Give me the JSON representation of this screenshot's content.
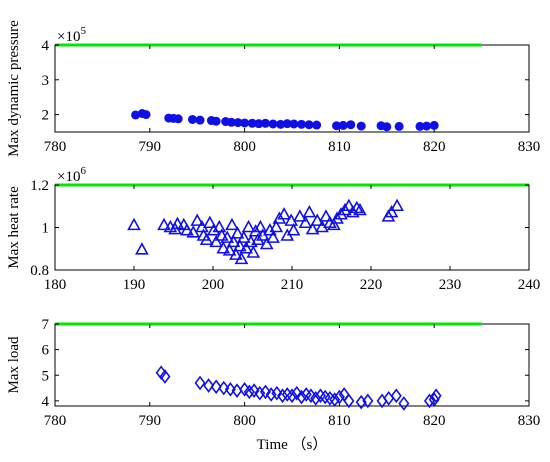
{
  "chart_data": [
    {
      "type": "scatter",
      "ylabel": "Max dynamic pressure",
      "xlabel": "",
      "xlim": [
        780,
        830
      ],
      "ylim": [
        150000,
        400000
      ],
      "xticks": [
        780,
        790,
        800,
        810,
        820,
        830
      ],
      "yticks": [
        200000,
        300000,
        400000
      ],
      "ytick_labels": [
        "2",
        "3",
        "4"
      ],
      "y_exponent": "5",
      "marker": "circle",
      "colors": {
        "marker": "#1010e6",
        "limit": "#00e600"
      },
      "limit": {
        "y": 400000,
        "x": [
          780,
          825
        ]
      },
      "series": [
        {
          "points": [
            [
              788.5,
              199000
            ],
            [
              789.2,
              203000
            ],
            [
              789.6,
              200000
            ],
            [
              792,
              190000
            ],
            [
              792.5,
              189000
            ],
            [
              793,
              188000
            ],
            [
              794.5,
              186000
            ],
            [
              795.3,
              184000
            ],
            [
              796.5,
              183000
            ],
            [
              797,
              181000
            ],
            [
              798,
              180000
            ],
            [
              798.6,
              178000
            ],
            [
              799.3,
              177000
            ],
            [
              800,
              176000
            ],
            [
              800.8,
              175000
            ],
            [
              801.5,
              174000
            ],
            [
              802.2,
              175000
            ],
            [
              803,
              173000
            ],
            [
              803.8,
              172000
            ],
            [
              804.5,
              174000
            ],
            [
              805.2,
              173000
            ],
            [
              806,
              172000
            ],
            [
              806.8,
              171000
            ],
            [
              807.6,
              170000
            ],
            [
              809.7,
              168000
            ],
            [
              810.4,
              169000
            ],
            [
              811.2,
              171000
            ],
            [
              812.3,
              167000
            ],
            [
              814.4,
              168000
            ],
            [
              815,
              165000
            ],
            [
              816.3,
              166000
            ],
            [
              818.5,
              166000
            ],
            [
              819.2,
              167000
            ],
            [
              820,
              169000
            ]
          ]
        }
      ]
    },
    {
      "type": "scatter",
      "ylabel": "Max heat rate",
      "xlabel": "",
      "xlim": [
        180,
        240
      ],
      "ylim": [
        800000,
        1200000
      ],
      "xticks": [
        180,
        190,
        200,
        210,
        220,
        230,
        240
      ],
      "yticks": [
        800000,
        1000000,
        1200000
      ],
      "ytick_labels": [
        "0.8",
        "1",
        "1.2"
      ],
      "y_exponent": "6",
      "marker": "triangle",
      "colors": {
        "marker": "#1010e6",
        "limit": "#00e600"
      },
      "limit": {
        "y": 1200000,
        "x": [
          180,
          240
        ]
      },
      "series": [
        {
          "points": [
            [
              190,
              1010000
            ],
            [
              191,
              895000
            ],
            [
              193.8,
              1010000
            ],
            [
              194.6,
              1000000
            ],
            [
              195.2,
              990000
            ],
            [
              195.5,
              1015000
            ],
            [
              196.3,
              1010000
            ],
            [
              196.7,
              985000
            ],
            [
              197.5,
              975000
            ],
            [
              198,
              1030000
            ],
            [
              198.6,
              1000000
            ],
            [
              198.8,
              960000
            ],
            [
              199.2,
              940000
            ],
            [
              199.6,
              1020000
            ],
            [
              200.1,
              985000
            ],
            [
              200.4,
              930000
            ],
            [
              200.8,
              1000000
            ],
            [
              201.1,
              960000
            ],
            [
              201.3,
              900000
            ],
            [
              201.8,
              950000
            ],
            [
              202.1,
              890000
            ],
            [
              202.4,
              1010000
            ],
            [
              202.6,
              930000
            ],
            [
              202.9,
              870000
            ],
            [
              203.1,
              970000
            ],
            [
              203.4,
              910000
            ],
            [
              203.6,
              850000
            ],
            [
              203.9,
              950000
            ],
            [
              204.2,
              900000
            ],
            [
              204.5,
              1000000
            ],
            [
              204.8,
              930000
            ],
            [
              205.1,
              880000
            ],
            [
              205.4,
              980000
            ],
            [
              205.7,
              940000
            ],
            [
              206,
              1000000
            ],
            [
              206.3,
              960000
            ],
            [
              206.8,
              920000
            ],
            [
              207.2,
              985000
            ],
            [
              207.6,
              950000
            ],
            [
              208,
              1000000
            ],
            [
              208.4,
              1040000
            ],
            [
              209,
              1060000
            ],
            [
              209.4,
              960000
            ],
            [
              209.9,
              1030000
            ],
            [
              210.2,
              985000
            ],
            [
              211,
              1050000
            ],
            [
              211.7,
              1020000
            ],
            [
              212.2,
              1070000
            ],
            [
              212.6,
              990000
            ],
            [
              213.2,
              1030000
            ],
            [
              213.8,
              1000000
            ],
            [
              214.3,
              1050000
            ],
            [
              214.8,
              1020000
            ],
            [
              215.3,
              1010000
            ],
            [
              215.7,
              1040000
            ],
            [
              216.2,
              1060000
            ],
            [
              216.7,
              1080000
            ],
            [
              217.2,
              1100000
            ],
            [
              217.7,
              1070000
            ],
            [
              218.2,
              1090000
            ],
            [
              218.6,
              1080000
            ],
            [
              222.2,
              1050000
            ],
            [
              222.6,
              1070000
            ],
            [
              223.3,
              1100000
            ]
          ]
        }
      ]
    },
    {
      "type": "scatter",
      "ylabel": "Max load",
      "xlabel": "Time （s）",
      "xlim": [
        780,
        830
      ],
      "ylim": [
        3.8,
        7
      ],
      "xticks": [
        780,
        790,
        800,
        810,
        820,
        830
      ],
      "yticks": [
        4,
        5,
        6,
        7
      ],
      "ytick_labels": [
        "4",
        "5",
        "6",
        "7"
      ],
      "y_exponent": "",
      "marker": "diamond",
      "colors": {
        "marker": "#1010e6",
        "limit": "#00e600"
      },
      "limit": {
        "y": 7,
        "x": [
          780,
          825
        ]
      },
      "series": [
        {
          "points": [
            [
              791.2,
              5.1
            ],
            [
              791.6,
              4.95
            ],
            [
              795.3,
              4.7
            ],
            [
              796.2,
              4.6
            ],
            [
              797,
              4.55
            ],
            [
              797.8,
              4.5
            ],
            [
              798.5,
              4.45
            ],
            [
              799.2,
              4.4
            ],
            [
              800,
              4.45
            ],
            [
              800.5,
              4.35
            ],
            [
              801,
              4.4
            ],
            [
              801.6,
              4.3
            ],
            [
              802.2,
              4.35
            ],
            [
              802.8,
              4.25
            ],
            [
              803.4,
              4.3
            ],
            [
              804,
              4.2
            ],
            [
              804.5,
              4.25
            ],
            [
              805,
              4.2
            ],
            [
              805.5,
              4.3
            ],
            [
              806,
              4.15
            ],
            [
              806.5,
              4.25
            ],
            [
              807,
              4.2
            ],
            [
              807.5,
              4.1
            ],
            [
              808,
              4.2
            ],
            [
              808.5,
              4.15
            ],
            [
              809,
              4.1
            ],
            [
              809.5,
              4.05
            ],
            [
              810,
              4.15
            ],
            [
              810.5,
              4.25
            ],
            [
              811,
              4.0
            ],
            [
              812.3,
              3.95
            ],
            [
              813,
              4.0
            ],
            [
              814.5,
              4.0
            ],
            [
              815.2,
              4.1
            ],
            [
              816,
              4.2
            ],
            [
              816.8,
              3.9
            ],
            [
              819.5,
              4.0
            ],
            [
              820,
              4.05
            ],
            [
              820.2,
              4.2
            ]
          ]
        }
      ]
    }
  ]
}
